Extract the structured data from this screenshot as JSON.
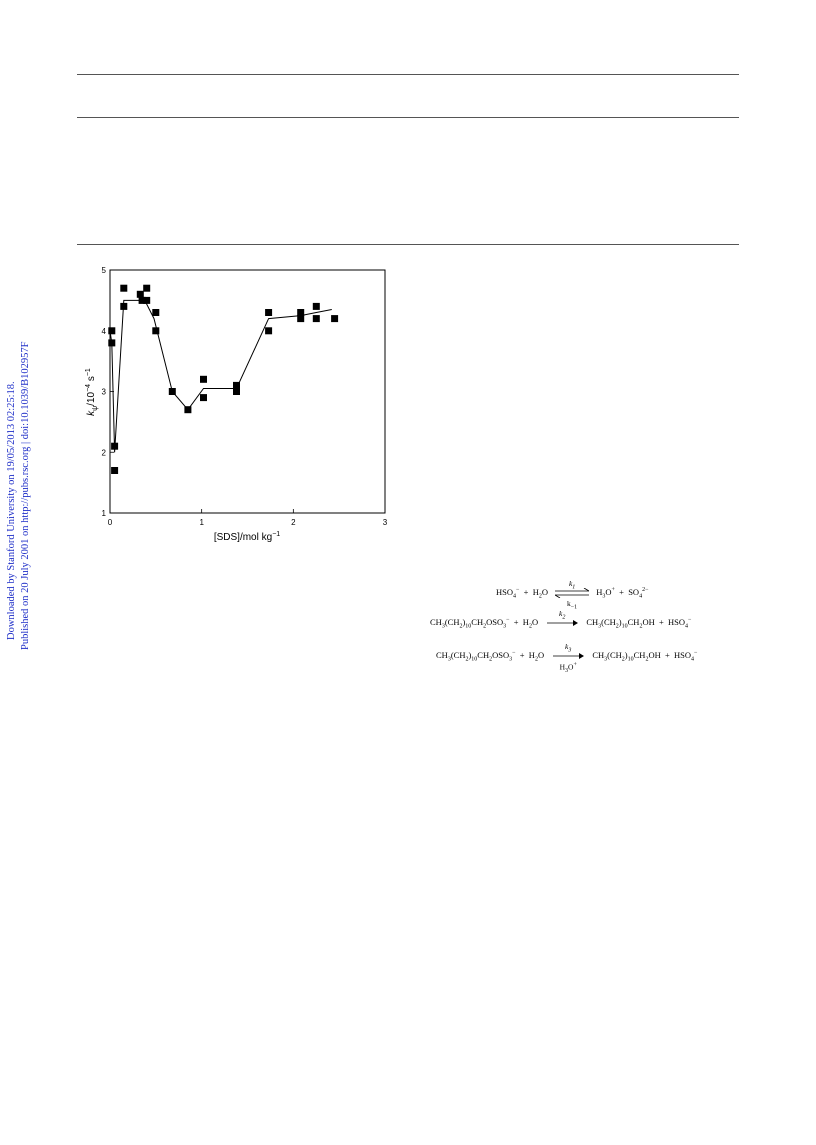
{
  "sidebar": {
    "line1": "Downloaded by Stanford University on 19/05/2013 02:25:18.",
    "line2": "Published on 20 July 2001 on http://pubs.rsc.org | doi:10.1039/B102957F"
  },
  "reactions": [
    {
      "left": [
        "HSO",
        "4",
        "−",
        " + H",
        "2",
        "O"
      ],
      "k_top": "k1",
      "k_bot": "k−1",
      "right": "H3O+ + SO4 2−"
    }
  ],
  "rxn_text": {
    "r1_lhs": "HSO4− + H2O",
    "r1_k_top": "k1",
    "r1_k_bot": "k−1",
    "r1_rhs": "H3O+ + SO42−",
    "r2_lhs": "CH3(CH2)10CH2OSO3− + H2O",
    "r2_k_top": "k2",
    "r2_rhs": "CH3(CH2)10CH2OH + HSO4−",
    "r3_lhs": "CH3(CH2)10CH2OSO3− + H2O",
    "r3_k_top": "k3",
    "r3_k_bot": "H3O+",
    "r3_rhs": "CH3(CH2)10CH2OH + HSO4−"
  },
  "chart_data": {
    "type": "scatter",
    "xlabel": "[SDS]/mol kg−1",
    "ylabel": "kψ/10−4 s−1",
    "xlim": [
      0,
      3
    ],
    "ylim": [
      1,
      5
    ],
    "xticks": [
      0,
      1,
      2,
      3
    ],
    "yticks": [
      1,
      2,
      3,
      4,
      5
    ],
    "points": [
      [
        0.02,
        4.0
      ],
      [
        0.02,
        3.8
      ],
      [
        0.05,
        2.1
      ],
      [
        0.05,
        1.7
      ],
      [
        0.15,
        4.7
      ],
      [
        0.15,
        4.4
      ],
      [
        0.33,
        4.6
      ],
      [
        0.35,
        4.5
      ],
      [
        0.4,
        4.7
      ],
      [
        0.4,
        4.5
      ],
      [
        0.5,
        4.3
      ],
      [
        0.5,
        4.0
      ],
      [
        0.68,
        3.0
      ],
      [
        0.85,
        2.7
      ],
      [
        1.02,
        3.2
      ],
      [
        1.02,
        2.9
      ],
      [
        1.38,
        3.1
      ],
      [
        1.38,
        3.0
      ],
      [
        1.73,
        4.3
      ],
      [
        1.73,
        4.0
      ],
      [
        2.08,
        4.3
      ],
      [
        2.08,
        4.2
      ],
      [
        2.25,
        4.4
      ],
      [
        2.25,
        4.2
      ],
      [
        2.45,
        4.2
      ]
    ],
    "fit_line": [
      [
        0.0,
        4.0
      ],
      [
        0.02,
        3.8
      ],
      [
        0.05,
        2.0
      ],
      [
        0.15,
        4.5
      ],
      [
        0.38,
        4.5
      ],
      [
        0.48,
        4.2
      ],
      [
        0.68,
        3.0
      ],
      [
        0.85,
        2.7
      ],
      [
        1.02,
        3.05
      ],
      [
        1.38,
        3.05
      ],
      [
        1.73,
        4.2
      ],
      [
        2.08,
        4.25
      ],
      [
        2.25,
        4.3
      ],
      [
        2.42,
        4.35
      ]
    ]
  }
}
